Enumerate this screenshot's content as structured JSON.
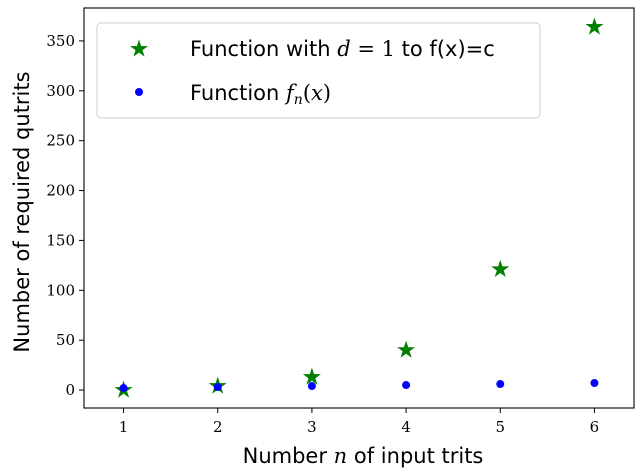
{
  "chart_data": {
    "type": "scatter",
    "xlabel_parts": [
      "Number ",
      "n",
      " of input trits"
    ],
    "ylabel": "Number of required qutrits",
    "xlim": [
      0.58,
      6.42
    ],
    "ylim": [
      -18,
      383
    ],
    "xticks": [
      1,
      2,
      3,
      4,
      5,
      6
    ],
    "yticks": [
      0,
      50,
      100,
      150,
      200,
      250,
      300,
      350
    ],
    "grid": false,
    "legend_position": "upper-left",
    "series": [
      {
        "name_parts": [
          "Function with ",
          "d",
          " = 1",
          " to f(x)=c"
        ],
        "marker": "star",
        "color": "#008000",
        "x": [
          1,
          2,
          3,
          4,
          5,
          6
        ],
        "y": [
          0,
          4,
          13,
          40,
          121,
          364
        ]
      },
      {
        "name_parts": [
          "Function ",
          "f",
          "n",
          "(",
          "x",
          ")"
        ],
        "marker": "circle",
        "color": "#0000ff",
        "x": [
          1,
          2,
          3,
          4,
          5,
          6
        ],
        "y": [
          2,
          3,
          4,
          5,
          6,
          7
        ]
      }
    ]
  }
}
